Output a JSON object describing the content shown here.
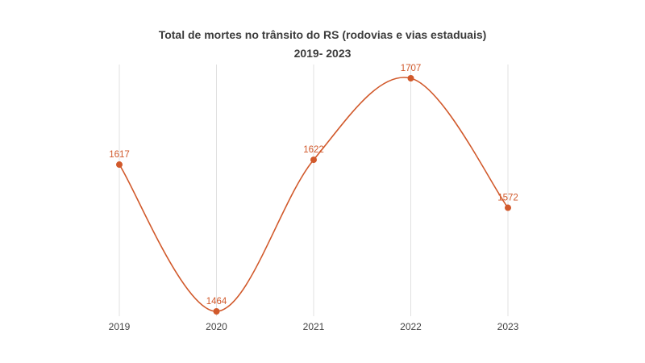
{
  "chart_data": {
    "type": "line",
    "title": "Total de mortes no trânsito do RS (rodovias e vias estaduais)",
    "subtitle": "2019- 2023",
    "categories": [
      "2019",
      "2020",
      "2021",
      "2022",
      "2023"
    ],
    "series": [
      {
        "values": [
          1617,
          1464,
          1622,
          1707,
          1572
        ]
      }
    ],
    "data_labels": [
      "1617",
      "1464",
      "1622",
      "1707",
      "1572"
    ],
    "ylim": [
      1464,
      1707
    ],
    "grid": "vertical",
    "legend": "none",
    "colors": {
      "series": "#d1592b",
      "grid": "#e0e0e0",
      "text": "#444444"
    }
  }
}
